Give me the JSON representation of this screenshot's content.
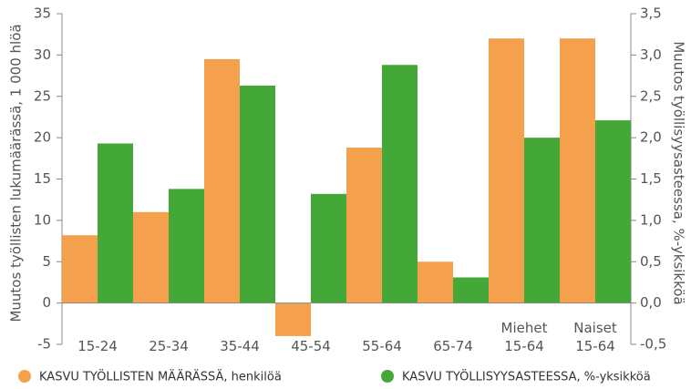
{
  "chart_data": {
    "type": "bar",
    "categories": [
      "15-24",
      "25-34",
      "35-44",
      "45-54",
      "55-64",
      "65-74",
      "Miehet 15-64",
      "Naiset 15-64"
    ],
    "series": [
      {
        "name": "KASVU TYÖLLISTEN MÄÄRÄSSÄ, henkilöä",
        "color": "#f5a04c",
        "values": [
          8.2,
          11,
          29.5,
          -4,
          18.8,
          5,
          32,
          32
        ]
      },
      {
        "name": "KASVU TYÖLLISYYSASTEESSA, %-yksikköä",
        "color": "#43a838",
        "axis": "y2",
        "values": [
          1.93,
          1.38,
          2.63,
          1.32,
          2.88,
          0.31,
          2.0,
          2.21
        ]
      }
    ],
    "ylabel": "Muutos työllisten lukumäärässä, 1 000 hlöä",
    "y2label": "Muutos työllisyysasteessa, %-yksikköä",
    "ylim": [
      -5,
      35
    ],
    "yticks": [
      -5,
      0,
      5,
      10,
      15,
      20,
      25,
      30,
      35
    ],
    "y2lim": [
      -0.5,
      3.5
    ],
    "y2ticks": [
      {
        "value": -0.5,
        "label": "-0,5"
      },
      {
        "value": 0,
        "label": "0,0"
      },
      {
        "value": 0.5,
        "label": "0,5"
      },
      {
        "value": 1,
        "label": "1,0"
      },
      {
        "value": 1.5,
        "label": "1,5"
      },
      {
        "value": 2,
        "label": "2,0"
      },
      {
        "value": 2.5,
        "label": "2,5"
      },
      {
        "value": 3,
        "label": "3,0"
      },
      {
        "value": 3.5,
        "label": "3,5"
      }
    ],
    "grid": false,
    "legend": "bottom"
  }
}
